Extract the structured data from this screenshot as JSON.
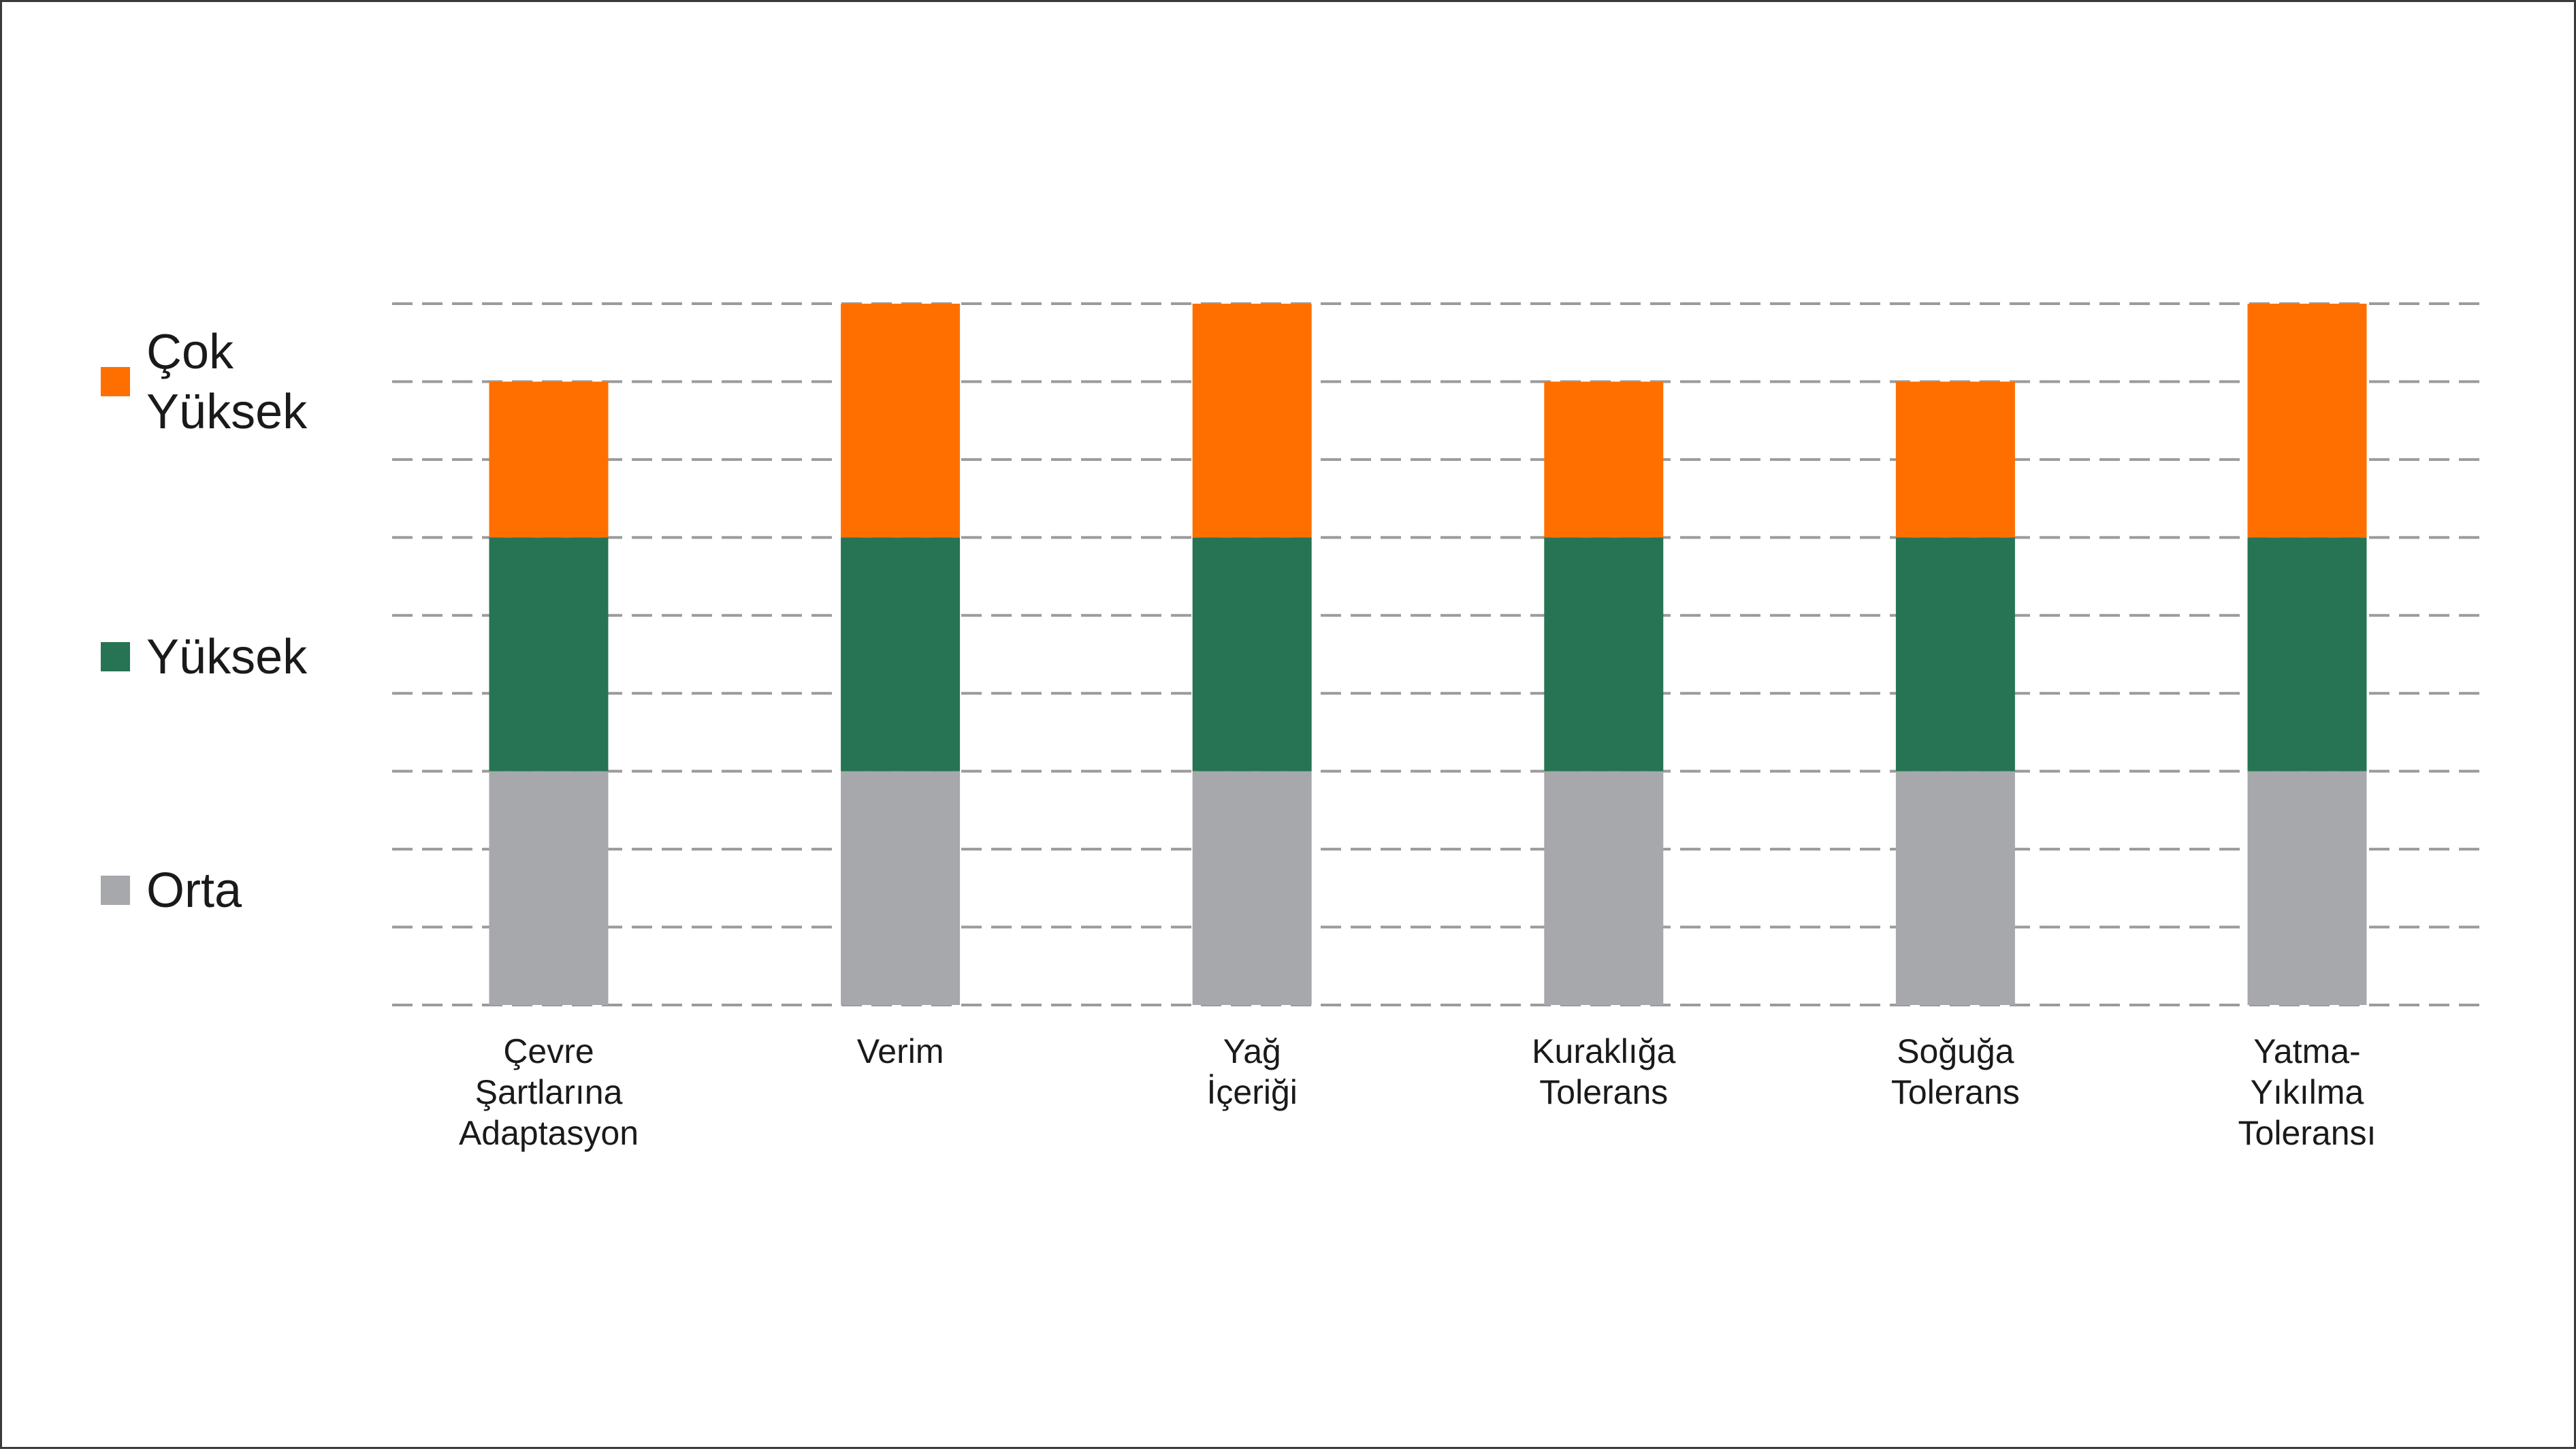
{
  "chart_data": {
    "type": "bar",
    "stacked": true,
    "categories": [
      "Çevre Şartlarına Adaptasyon",
      "Verim",
      "Yağ İçeriği",
      "Kuraklığa Tolerans",
      "Soğuğa Tolerans",
      "Yatma-Yıkılma Toleransı"
    ],
    "category_lines": [
      [
        "Çevre",
        "Şartlarına",
        "Adaptasyon"
      ],
      [
        "Verim"
      ],
      [
        "Yağ",
        "İçeriği"
      ],
      [
        "Kuraklığa",
        "Tolerans"
      ],
      [
        "Soğuğa",
        "Tolerans"
      ],
      [
        "Yatma-",
        "Yıkılma",
        "Toleransı"
      ]
    ],
    "series": [
      {
        "name": "Orta",
        "color": "#a7a8ab",
        "values": [
          3,
          3,
          3,
          3,
          3,
          3
        ]
      },
      {
        "name": "Yüksek",
        "color": "#267454",
        "values": [
          3,
          3,
          3,
          3,
          3,
          3
        ]
      },
      {
        "name": "Çok Yüksek",
        "color": "#ff6f00",
        "values": [
          2,
          3,
          3,
          2,
          2,
          3
        ]
      }
    ],
    "ylim": [
      0,
      9
    ],
    "y_grid_step": 1,
    "grid": true,
    "grid_style": "dashed",
    "legend_position": "left",
    "legend": [
      {
        "series": "Çok Yüksek",
        "lines": [
          "Çok",
          "Yüksek"
        ]
      },
      {
        "series": "Yüksek",
        "lines": [
          "Yüksek"
        ]
      },
      {
        "series": "Orta",
        "lines": [
          "Orta"
        ]
      }
    ],
    "title": "",
    "xlabel": "",
    "ylabel": ""
  }
}
